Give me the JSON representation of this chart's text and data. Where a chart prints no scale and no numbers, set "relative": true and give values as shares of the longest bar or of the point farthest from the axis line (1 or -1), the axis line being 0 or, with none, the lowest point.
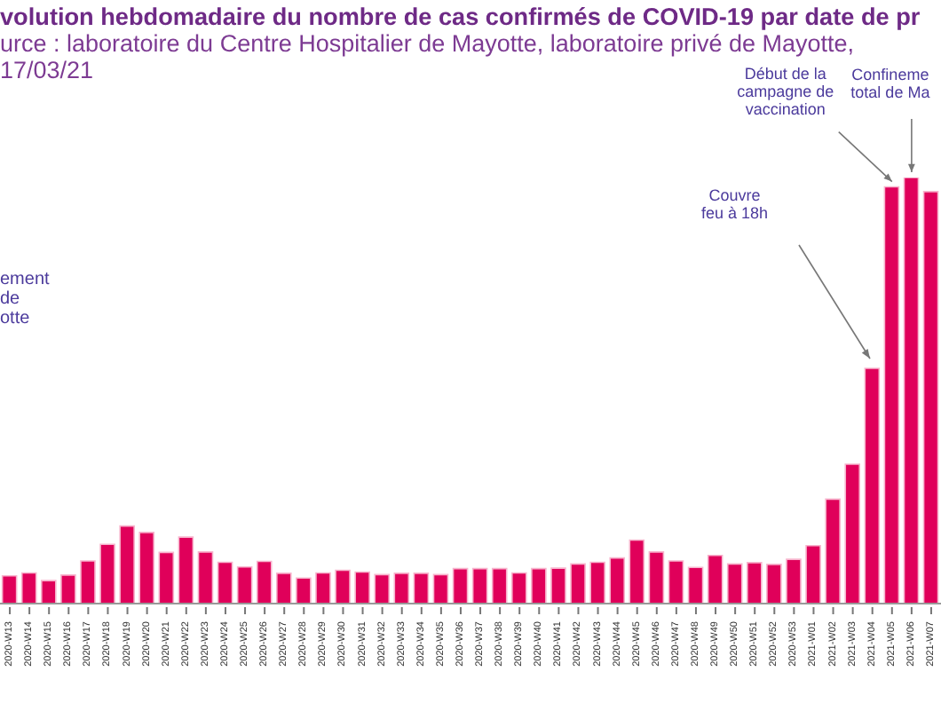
{
  "chart_data": {
    "type": "bar",
    "title": "volution hebdomadaire du nombre de cas confirmés de COVID-19 par date de pr",
    "subtitle": "urce : laboratoire du Centre Hospitalier de Mayotte, laboratoire privé de Mayotte,\n17/03/21",
    "relative": true,
    "color": "#e0005a",
    "categories": [
      "2020-W13",
      "2020-W14",
      "2020-W15",
      "2020-W16",
      "2020-W17",
      "2020-W18",
      "2020-W19",
      "2020-W20",
      "2020-W21",
      "2020-W22",
      "2020-W23",
      "2020-W24",
      "2020-W25",
      "2020-W26",
      "2020-W27",
      "2020-W28",
      "2020-W29",
      "2020-W30",
      "2020-W31",
      "2020-W32",
      "2020-W33",
      "2020-W34",
      "2020-W35",
      "2020-W36",
      "2020-W37",
      "2020-W38",
      "2020-W39",
      "2020-W40",
      "2020-W41",
      "2020-W42",
      "2020-W43",
      "2020-W44",
      "2020-W45",
      "2020-W46",
      "2020-W47",
      "2020-W48",
      "2020-W49",
      "2020-W50",
      "2020-W51",
      "2020-W52",
      "2020-W53",
      "2021-W01",
      "2021-W02",
      "2021-W03",
      "2021-W04",
      "2021-W05",
      "2021-W06",
      "2021-W07"
    ],
    "values": [
      0.065,
      0.072,
      0.054,
      0.067,
      0.1,
      0.139,
      0.182,
      0.167,
      0.12,
      0.156,
      0.121,
      0.097,
      0.086,
      0.099,
      0.071,
      0.06,
      0.072,
      0.078,
      0.074,
      0.068,
      0.071,
      0.071,
      0.068,
      0.082,
      0.082,
      0.082,
      0.072,
      0.082,
      0.083,
      0.093,
      0.097,
      0.107,
      0.149,
      0.121,
      0.1,
      0.085,
      0.113,
      0.093,
      0.096,
      0.092,
      0.104,
      0.136,
      0.245,
      0.327,
      0.552,
      0.978,
      1,
      0.967
    ],
    "annotations": [
      "ement\nde\notte",
      "Couvre\nfeu à 18h",
      {
        "text": "Début de la\ncampagne de\nvaccination",
        "x": "2021-W05",
        "y": 0.978
      },
      {
        "text": "Confineme\ntotal de Ma",
        "x": "2021-W06",
        "y": 1
      }
    ],
    "grid": false,
    "legend": false
  }
}
